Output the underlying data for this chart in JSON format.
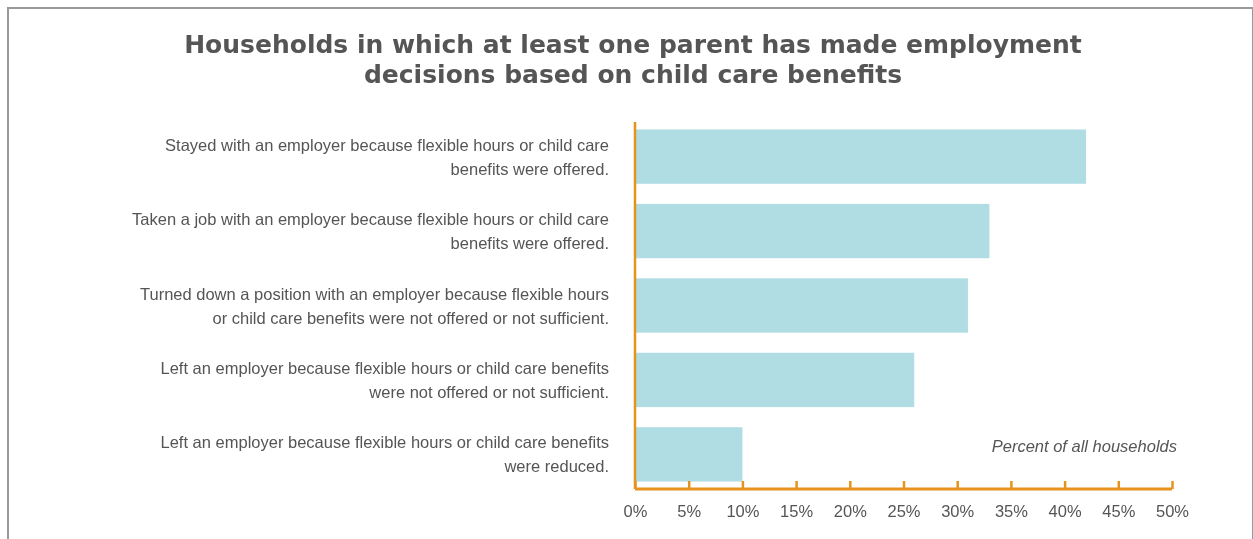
{
  "chart_data": {
    "type": "bar",
    "orientation": "horizontal",
    "title": "Households in which at least one parent has made employment decisions based on child care benefits",
    "categories": [
      "Stayed with an employer because flexible hours or child care benefits were offered.",
      "Taken a job with an employer because flexible hours or child care benefits were offered.",
      "Turned down a position with an employer because flexible hours or child care benefits were not offered or not sufficient.",
      "Left an employer because flexible hours or child care benefits were not offered or not sufficient.",
      "Left an employer because flexible hours or child care benefits were reduced."
    ],
    "values": [
      42,
      33,
      31,
      26,
      10
    ],
    "color": "#afdde3",
    "xlabel": "Percent of all households",
    "xlim": [
      0,
      50
    ],
    "xticks": [
      {
        "value": 0,
        "label": "0%"
      },
      {
        "value": 5,
        "label": "5%"
      },
      {
        "value": 10,
        "label": "10%"
      },
      {
        "value": 15,
        "label": "15%"
      },
      {
        "value": 20,
        "label": "20%"
      },
      {
        "value": 25,
        "label": "25%"
      },
      {
        "value": 30,
        "label": "30%"
      },
      {
        "value": 35,
        "label": "35%"
      },
      {
        "value": 40,
        "label": "40%"
      },
      {
        "value": 45,
        "label": "45%"
      },
      {
        "value": 50,
        "label": "50%"
      }
    ]
  }
}
